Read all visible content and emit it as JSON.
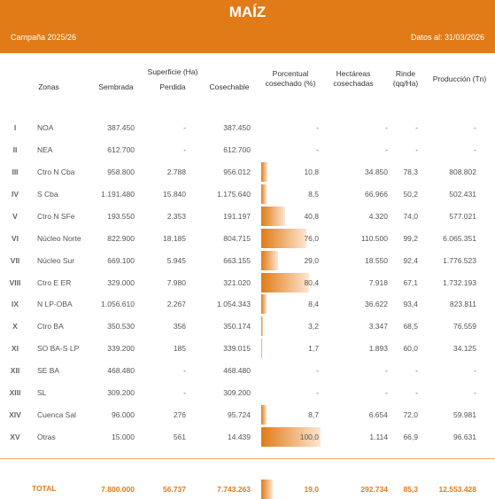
{
  "header": {
    "title": "MAÍZ",
    "campaign": "Campaña 2025/26",
    "date": "Datos al: 31/03/2026"
  },
  "table": {
    "group_header": "Superficie (Ha)",
    "columns": [
      "Zonas",
      "Sembrada",
      "Perdida",
      "Cosechable",
      "Porcentual cosechado (%)",
      "Hectáreas cosechadas",
      "Rinde (qq/Ha)",
      "Producción (Tn)"
    ],
    "rows": [
      [
        "I",
        "NOA",
        "387.450",
        "-",
        "387.450",
        "-",
        "-",
        "-",
        "-"
      ],
      [
        "II",
        "NEA",
        "612.700",
        "-",
        "612.700",
        "-",
        "-",
        "-",
        "-"
      ],
      [
        "III",
        "Ctro N Cba",
        "958.800",
        "2.788",
        "956.012",
        {
          "value": 10.8,
          "label": "10,8"
        },
        "34.850",
        "78,3",
        "808.802"
      ],
      [
        "IV",
        "S Cba",
        "1.191.480",
        "15.840",
        "1.175.640",
        {
          "value": 8.5,
          "label": "8,5"
        },
        "66.966",
        "50,2",
        "502.431"
      ],
      [
        "V",
        "Ctro N SFe",
        "193.550",
        "2.353",
        "191.197",
        {
          "value": 40.8,
          "label": "40,8"
        },
        "4.320",
        "74,0",
        "577.021"
      ],
      [
        "VI",
        "Núcleo Norte",
        "822.900",
        "18.185",
        "804.715",
        {
          "value": 76.0,
          "label": "76,0"
        },
        "110.500",
        "99,2",
        "6.065.351"
      ],
      [
        "VII",
        "Núcleo Sur",
        "669.100",
        "5.945",
        "663.155",
        {
          "value": 29.0,
          "label": "29,0"
        },
        "18.550",
        "92,4",
        "1.776.523"
      ],
      [
        "VIII",
        "Ctro E ER",
        "329.000",
        "7.980",
        "321.020",
        {
          "value": 80.4,
          "label": "80,4"
        },
        "7.918",
        "67,1",
        "1.732.193"
      ],
      [
        "IX",
        "N LP-OBA",
        "1.056.610",
        "2.267",
        "1.054.343",
        {
          "value": 8.4,
          "label": "8,4"
        },
        "36.622",
        "93,4",
        "823.811"
      ],
      [
        "X",
        "Ctro BA",
        "350.530",
        "356",
        "350.174",
        {
          "value": 3.2,
          "label": "3,2"
        },
        "3.347",
        "68,5",
        "76.559"
      ],
      [
        "XI",
        "SO BA-S LP",
        "339.200",
        "185",
        "339.015",
        {
          "value": 1.7,
          "label": "1,7"
        },
        "1.893",
        "60,0",
        "34.125"
      ],
      [
        "XII",
        "SE BA",
        "468.480",
        "-",
        "468.480",
        "-",
        "-",
        "-",
        "-"
      ],
      [
        "XIII",
        "SL",
        "309.200",
        "-",
        "309.200",
        "-",
        "-",
        "-",
        "-"
      ],
      [
        "XIV",
        "Cuenca Sal",
        "96.000",
        "276",
        "95.724",
        {
          "value": 8.7,
          "label": "8,7"
        },
        "6.654",
        "72,0",
        "59.981"
      ],
      [
        "XV",
        "Otras",
        "15.000",
        "561",
        "14.439",
        {
          "value": 100.0,
          "label": "100,0"
        },
        "1.114",
        "66,9",
        "96.631"
      ]
    ],
    "total": [
      "TOTAL",
      "7.800.000",
      "56.737",
      "7.743.263",
      {
        "value": 19.0,
        "label": "19,0"
      },
      "292.734",
      "85,3",
      "12.553.428"
    ]
  }
}
